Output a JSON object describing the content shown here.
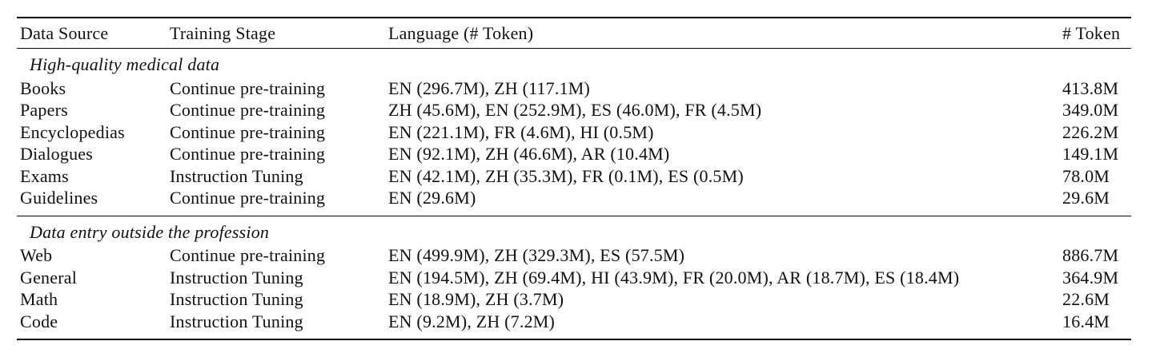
{
  "table": {
    "headers": [
      "Data Source",
      "Training Stage",
      "Language (# Token)",
      "# Token"
    ],
    "sections": [
      {
        "title": "High-quality medical data",
        "rows": [
          [
            "Books",
            "Continue pre-training",
            "EN (296.7M), ZH (117.1M)",
            "413.8M"
          ],
          [
            "Papers",
            "Continue pre-training",
            "ZH (45.6M), EN (252.9M), ES (46.0M), FR (4.5M)",
            "349.0M"
          ],
          [
            "Encyclopedias",
            "Continue pre-training",
            "EN (221.1M), FR (4.6M), HI (0.5M)",
            "226.2M"
          ],
          [
            "Dialogues",
            "Continue pre-training",
            "EN (92.1M), ZH (46.6M), AR (10.4M)",
            "149.1M"
          ],
          [
            "Exams",
            "Instruction Tuning",
            "EN (42.1M), ZH (35.3M), FR (0.1M), ES (0.5M)",
            "78.0M"
          ],
          [
            "Guidelines",
            "Continue pre-training",
            "EN (29.6M)",
            "29.6M"
          ]
        ]
      },
      {
        "title": "Data entry outside the profession",
        "rows": [
          [
            "Web",
            "Continue pre-training",
            "EN (499.9M), ZH (329.3M), ES (57.5M)",
            "886.7M"
          ],
          [
            "General",
            "Instruction Tuning",
            "EN (194.5M), ZH (69.4M), HI (43.9M), FR (20.0M), AR (18.7M), ES (18.4M)",
            "364.9M"
          ],
          [
            "Math",
            "Instruction Tuning",
            "EN (18.9M), ZH (3.7M)",
            "22.6M"
          ],
          [
            "Code",
            "Instruction Tuning",
            "EN (9.2M), ZH (7.2M)",
            "16.4M"
          ]
        ]
      }
    ]
  }
}
